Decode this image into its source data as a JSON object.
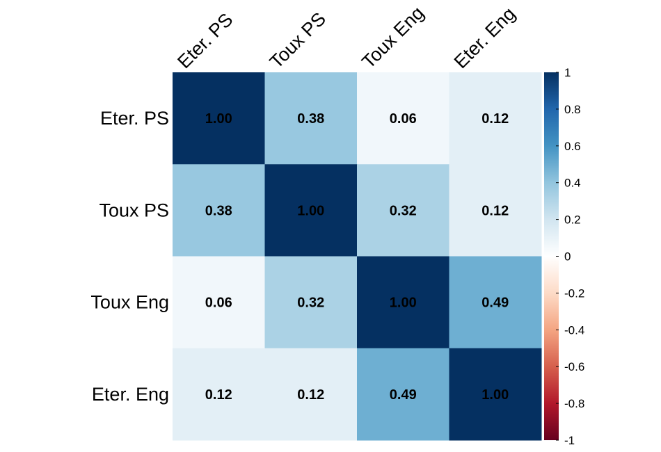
{
  "chart_data": {
    "type": "heatmap",
    "row_labels": [
      "Eter. PS",
      "Toux PS",
      "Toux Eng",
      "Eter. Eng"
    ],
    "col_labels": [
      "Eter. PS",
      "Toux PS",
      "Toux Eng",
      "Eter. Eng"
    ],
    "matrix": [
      [
        1.0,
        0.38,
        0.06,
        0.12
      ],
      [
        0.38,
        1.0,
        0.32,
        0.12
      ],
      [
        0.06,
        0.32,
        1.0,
        0.49
      ],
      [
        0.12,
        0.12,
        0.49,
        1.0
      ]
    ],
    "cell_labels": [
      [
        "1.00",
        "0.38",
        "0.06",
        "0.12"
      ],
      [
        "0.38",
        "1.00",
        "0.32",
        "0.12"
      ],
      [
        "0.06",
        "0.32",
        "1.00",
        "0.49"
      ],
      [
        "0.12",
        "0.12",
        "0.49",
        "1.00"
      ]
    ],
    "colorbar": {
      "range": [
        -1,
        1
      ],
      "ticks": [
        1,
        0.8,
        0.6,
        0.4,
        0.2,
        0,
        -0.2,
        -0.4,
        -0.6,
        -0.8,
        -1
      ],
      "tick_labels": [
        "1",
        "0.8",
        "0.6",
        "0.4",
        "0.2",
        "0",
        "-0.2",
        "-0.4",
        "-0.6",
        "-0.8",
        "-1"
      ],
      "colors": [
        "#67001f",
        "#b2182b",
        "#d6604d",
        "#f4a582",
        "#fddbc7",
        "#ffffff",
        "#d1e5f0",
        "#92c5de",
        "#4393c3",
        "#2166ac",
        "#053061"
      ]
    }
  }
}
